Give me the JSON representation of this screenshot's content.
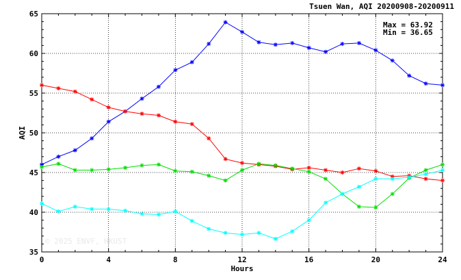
{
  "chart_data": {
    "type": "line",
    "title": "Tsuen Wan, AQI 20200908-20200911",
    "xlabel": "Hours",
    "ylabel": "AQI",
    "xlim": [
      0,
      24
    ],
    "ylim": [
      35,
      65
    ],
    "x_ticks": [
      0,
      4,
      8,
      12,
      16,
      20,
      24
    ],
    "y_ticks": [
      35,
      40,
      45,
      50,
      55,
      60,
      65
    ],
    "grid": true,
    "stats": {
      "max": "Max = 63.92",
      "min": "Min = 36.65"
    },
    "watermark": "© 2025  ENVF, HKUST",
    "x": [
      0,
      1,
      2,
      3,
      4,
      5,
      6,
      7,
      8,
      9,
      10,
      11,
      12,
      13,
      14,
      15,
      16,
      17,
      18,
      19,
      20,
      21,
      22,
      23,
      24
    ],
    "series": [
      {
        "color": "#0000ff",
        "values": [
          46.0,
          47.0,
          47.8,
          49.3,
          51.4,
          52.7,
          54.3,
          55.8,
          57.9,
          58.9,
          61.2,
          63.92,
          62.7,
          61.4,
          61.1,
          61.3,
          60.7,
          60.2,
          61.2,
          61.3,
          60.4,
          59.1,
          57.2,
          56.2,
          56.0
        ]
      },
      {
        "color": "#ff0000",
        "values": [
          56.0,
          55.6,
          55.2,
          54.2,
          53.2,
          52.7,
          52.4,
          52.2,
          51.4,
          51.1,
          49.3,
          46.7,
          46.2,
          46.0,
          45.8,
          45.4,
          45.6,
          45.3,
          45.0,
          45.5,
          45.2,
          44.5,
          44.6,
          44.2,
          44.0
        ]
      },
      {
        "color": "#00dd00",
        "values": [
          45.7,
          46.1,
          45.3,
          45.3,
          45.4,
          45.6,
          45.9,
          46.0,
          45.2,
          45.1,
          44.6,
          44.0,
          45.3,
          46.1,
          45.9,
          45.5,
          45.1,
          44.2,
          42.3,
          40.7,
          40.6,
          42.3,
          44.3,
          45.3,
          46.0
        ]
      },
      {
        "color": "#00ffff",
        "values": [
          41.1,
          40.1,
          40.7,
          40.4,
          40.4,
          40.2,
          39.8,
          39.7,
          40.1,
          38.9,
          37.9,
          37.4,
          37.2,
          37.4,
          36.65,
          37.6,
          39.0,
          41.2,
          42.3,
          43.2,
          44.2,
          44.2,
          44.4,
          44.8,
          45.3
        ]
      }
    ]
  }
}
